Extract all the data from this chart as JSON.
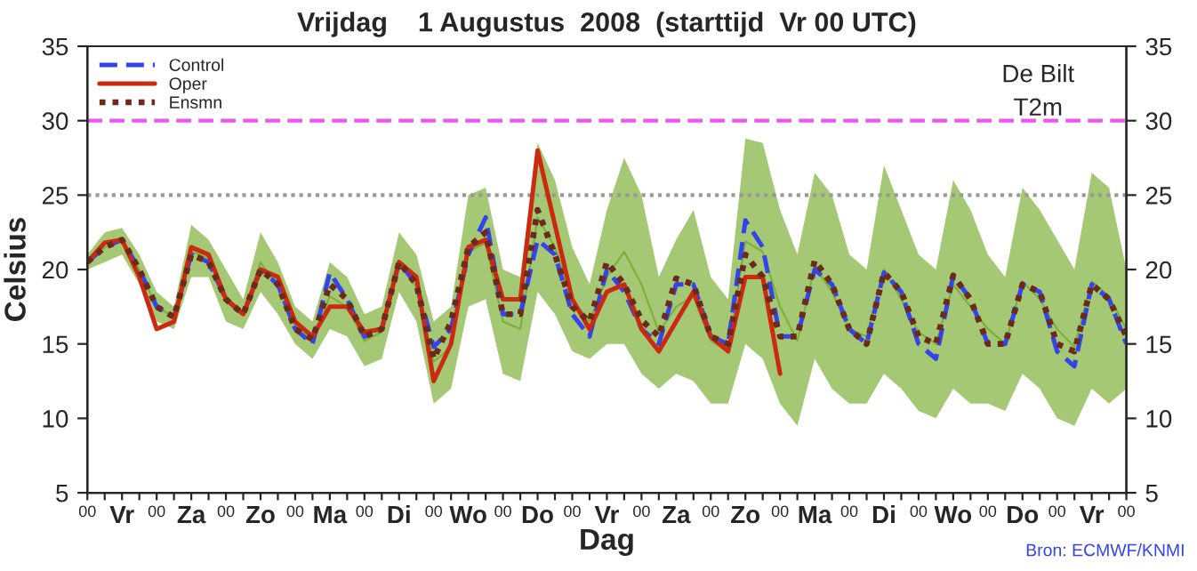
{
  "chart_data": {
    "type": "line",
    "title": "Vrijdag    1 Augustus  2008  (starttijd  Vr 00 UTC)",
    "xlabel": "Dag",
    "ylabel": "Celsius",
    "annotations": [
      "De Bilt",
      "T2m",
      "Bron: ECMWF/KNMI"
    ],
    "categories": [
      "00",
      null,
      "Vr",
      null,
      "00",
      null,
      "Za",
      null,
      "00",
      null,
      "Zo",
      null,
      "00",
      null,
      "Ma",
      null,
      "00",
      null,
      "Di",
      null,
      "00",
      null,
      "Wo",
      null,
      "00",
      null,
      "Do",
      null,
      "00",
      null,
      "Vr",
      null,
      "00",
      null,
      "Za",
      null,
      "00",
      null,
      "Zo",
      null,
      "00",
      null,
      "Ma",
      null,
      "00",
      null,
      "Di",
      null,
      "00",
      null,
      "Wo",
      null,
      "00",
      null,
      "Do",
      null,
      "00",
      null,
      "Vr",
      null,
      "00"
    ],
    "series": [
      {
        "color": "#7fb03a",
        "line_style": "solid",
        "values": [
          20.5,
          21.5,
          21.9,
          20,
          17.5,
          16.8,
          21.2,
          20.8,
          18.2,
          17,
          20.5,
          18.8,
          16.2,
          15.2,
          18.2,
          17.5,
          15.2,
          15.8,
          20.5,
          18.8,
          13.8,
          14.8,
          21.2,
          21.8,
          16.5,
          16,
          23.5,
          21.5,
          18,
          16.5,
          19.5,
          21.2,
          19,
          15.8,
          17.5,
          18.2,
          15.2,
          14.5,
          21.9,
          21.2,
          17.5,
          15.2,
          20.2,
          18.5,
          16,
          15.5,
          20,
          18,
          15.8,
          15,
          19,
          17.5,
          16,
          15,
          19.2,
          18,
          16,
          14.8,
          19.2,
          18.2,
          16
        ],
        "lower": [
          20,
          20.5,
          21,
          19,
          16.5,
          16,
          19.5,
          19.5,
          16.5,
          16,
          18.5,
          17,
          15,
          14,
          16,
          15.5,
          13.5,
          14,
          18.5,
          16.5,
          11,
          12,
          17.5,
          18,
          13,
          12.5,
          18.5,
          17,
          14.5,
          14,
          15,
          15,
          13,
          12,
          13,
          12.5,
          11,
          11,
          15,
          14,
          11,
          9.5,
          14,
          12,
          11,
          11,
          13,
          12,
          10.5,
          10,
          12,
          11,
          11,
          10.5,
          13,
          12,
          10,
          9.5,
          12,
          11,
          12
        ],
        "upper": [
          21,
          22.5,
          22.8,
          21,
          18.5,
          17.5,
          23,
          22,
          20,
          18,
          22.5,
          20.5,
          17.5,
          16.5,
          20.5,
          19.5,
          17,
          17.5,
          22.5,
          21,
          16.5,
          17.5,
          25,
          25.5,
          20,
          19.5,
          28.5,
          26,
          21.5,
          19,
          24,
          27.5,
          25,
          19.5,
          22,
          24,
          19.5,
          18,
          28.8,
          28.5,
          24,
          21,
          26.5,
          25,
          21,
          20,
          27,
          24,
          21,
          20,
          26,
          24,
          21,
          19.5,
          25.5,
          24,
          22,
          20,
          26.5,
          25.5,
          20
        ]
      },
      {
        "name": "Control",
        "color": "#3344ee",
        "line_style": "dashed",
        "values": [
          20.5,
          21.5,
          22.0,
          20.0,
          17.5,
          16.8,
          21.0,
          20.5,
          18.0,
          17.0,
          20.0,
          19.0,
          16.0,
          15.0,
          19.8,
          18.0,
          15.5,
          16.0,
          20.5,
          19.0,
          14.8,
          16.0,
          21.0,
          23.5,
          17.0,
          17.0,
          22.0,
          21.0,
          17.0,
          15.5,
          20.0,
          18.5,
          16.0,
          15.0,
          19.0,
          19.0,
          15.5,
          15.0,
          23.3,
          21.5,
          15.5,
          15.5,
          20.0,
          19.0,
          16.0,
          15.0,
          19.8,
          18.5,
          15.0,
          14.0,
          19.6,
          18.0,
          15.0,
          15.0,
          19.0,
          18.5,
          14.5,
          13.5,
          19.0,
          18.0,
          15.0
        ]
      },
      {
        "name": "Oper",
        "color": "#cc2a10",
        "line_style": "solid",
        "values": [
          20.5,
          21.8,
          22.0,
          19.5,
          16.0,
          16.5,
          21.5,
          21.0,
          18.0,
          17.0,
          20.0,
          19.5,
          16.5,
          15.5,
          17.5,
          17.5,
          15.8,
          16.0,
          20.5,
          19.5,
          12.5,
          15.0,
          21.5,
          22.0,
          18.0,
          18.0,
          28.0,
          23.0,
          18.0,
          16.0,
          18.5,
          19.0,
          16.0,
          14.5,
          16.5,
          18.5,
          15.5,
          14.5,
          19.5,
          19.5,
          13.0,
          null,
          null,
          null,
          null,
          null,
          null,
          null,
          null,
          null,
          null,
          null,
          null,
          null,
          null,
          null,
          null,
          null,
          null,
          null,
          null
        ]
      },
      {
        "name": "Ensmn",
        "color": "#6b2a1a",
        "line_style": "dotted",
        "values": [
          20.5,
          21.5,
          22.0,
          20.0,
          17.5,
          16.8,
          21.0,
          20.5,
          18.0,
          17.0,
          20.0,
          19.0,
          16.0,
          15.3,
          19.0,
          18.0,
          15.5,
          16.0,
          20.5,
          19.0,
          14.0,
          16.5,
          21.5,
          22.5,
          17.0,
          17.0,
          24.0,
          21.0,
          17.5,
          16.5,
          20.5,
          19.0,
          16.6,
          15.5,
          19.4,
          19.0,
          15.5,
          15.0,
          21.0,
          19.5,
          15.5,
          15.5,
          20.6,
          19.0,
          16.0,
          15.0,
          19.8,
          18.5,
          15.5,
          15.0,
          19.6,
          18.0,
          15.0,
          15.0,
          19.0,
          18.5,
          15.0,
          14.5,
          19.0,
          18.0,
          15.5
        ]
      }
    ],
    "ylim": [
      5,
      35
    ],
    "yticks": [
      5,
      10,
      15,
      20,
      25,
      30,
      35
    ],
    "y2lim": [
      5,
      35
    ],
    "y2ticks": [
      5,
      10,
      15,
      20,
      25,
      30,
      35
    ],
    "ref_lines": [
      {
        "axis": "y",
        "value": 30,
        "label": null,
        "color": "#ee55ee",
        "line_style": "dashed"
      },
      {
        "axis": "y",
        "value": 25,
        "label": null,
        "color": "#999999",
        "line_style": "dotted"
      }
    ],
    "grid": false,
    "legend": "top left"
  }
}
